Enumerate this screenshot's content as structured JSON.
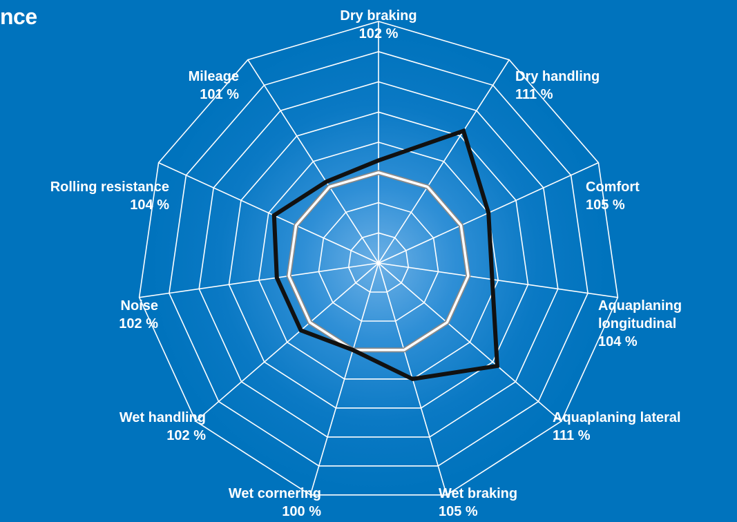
{
  "title": "nce",
  "chart_data": {
    "type": "radar",
    "title": "nce",
    "reference_value": 100,
    "rlim": [
      85,
      125
    ],
    "rings": [
      90,
      95,
      100,
      105,
      110,
      115,
      120
    ],
    "categories": [
      {
        "name": [
          "Dry braking"
        ],
        "value": 102,
        "value_label": "102 %"
      },
      {
        "name": [
          "Dry handling"
        ],
        "value": 111,
        "value_label": "111 %"
      },
      {
        "name": [
          "Comfort"
        ],
        "value": 105,
        "value_label": "105 %"
      },
      {
        "name": [
          "Aquaplaning",
          "longitudinal"
        ],
        "value": 104,
        "value_label": "104 %"
      },
      {
        "name": [
          "Aquaplaning lateral"
        ],
        "value": 111,
        "value_label": "111 %"
      },
      {
        "name": [
          "Wet braking"
        ],
        "value": 105,
        "value_label": "105 %"
      },
      {
        "name": [
          "Wet cornering"
        ],
        "value": 100,
        "value_label": "100 %"
      },
      {
        "name": [
          "Wet handling"
        ],
        "value": 102,
        "value_label": "102 %"
      },
      {
        "name": [
          "Noise"
        ],
        "value": 102,
        "value_label": "102 %"
      },
      {
        "name": [
          "Rolling resistance"
        ],
        "value": 104,
        "value_label": "104 %"
      },
      {
        "name": [
          "Mileage"
        ],
        "value": 101,
        "value_label": "101 %"
      }
    ],
    "series": [
      {
        "values": [
          102,
          111,
          105,
          104,
          111,
          105,
          100,
          102,
          102,
          104,
          101
        ],
        "color": "#111111"
      },
      {
        "values": [
          100,
          100,
          100,
          100,
          100,
          100,
          100,
          100,
          100,
          100,
          100
        ],
        "color": "#ffffff"
      }
    ],
    "grid": true,
    "colors": {
      "background": "#0073bd",
      "grid": "#ffffff",
      "product_line": "#111111",
      "reference_line": "#ffffff"
    }
  }
}
